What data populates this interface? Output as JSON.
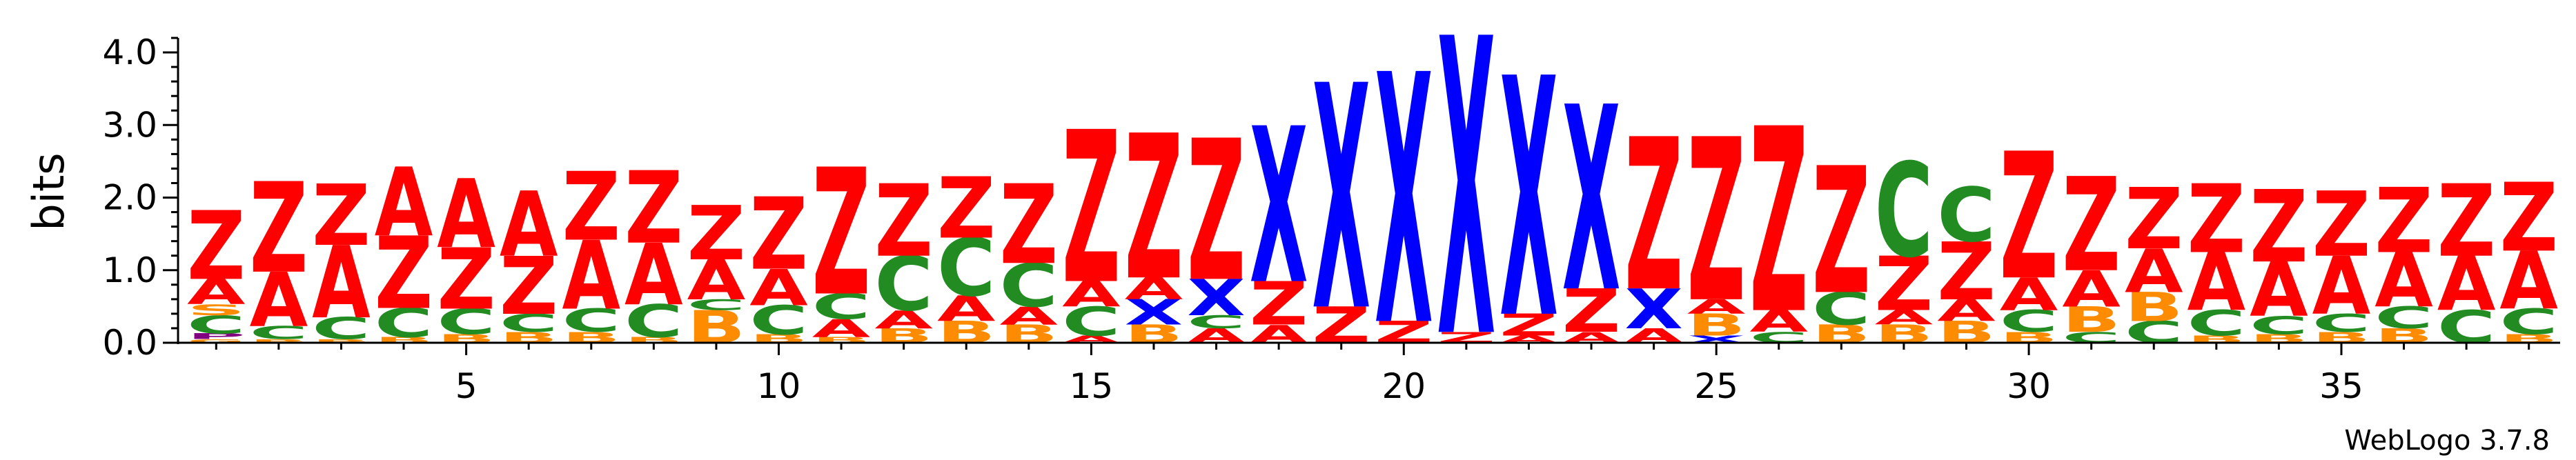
{
  "chart_data": {
    "type": "sequence-logo",
    "ylabel": "bits",
    "ylim": [
      0,
      4.2
    ],
    "y_ticks": [
      "0.0",
      "1.0",
      "2.0",
      "3.0",
      "4.0"
    ],
    "x_ticks": [
      5,
      10,
      15,
      20,
      25,
      30,
      35
    ],
    "footer": "WebLogo 3.7.8",
    "colors": {
      "Z": "#ff0000",
      "A": "#ff0000",
      "C": "#228b22",
      "B": "#ff8c00",
      "X": "#0000ff",
      "S": "#ff8c00",
      "P": "#800080",
      "G": "#ff8c00"
    },
    "positions": [
      {
        "pos": 1,
        "stack": [
          [
            "G",
            0.05
          ],
          [
            "P",
            0.08
          ],
          [
            "C",
            0.25
          ],
          [
            "S",
            0.15
          ],
          [
            "A",
            0.35
          ],
          [
            "Z",
            0.95
          ]
        ]
      },
      {
        "pos": 2,
        "stack": [
          [
            "B",
            0.05
          ],
          [
            "C",
            0.18
          ],
          [
            "A",
            0.75
          ],
          [
            "Z",
            1.25
          ]
        ]
      },
      {
        "pos": 3,
        "stack": [
          [
            "B",
            0.05
          ],
          [
            "C",
            0.3
          ],
          [
            "A",
            1.0
          ],
          [
            "Z",
            0.85
          ]
        ]
      },
      {
        "pos": 4,
        "stack": [
          [
            "B",
            0.08
          ],
          [
            "C",
            0.4
          ],
          [
            "Z",
            1.0
          ],
          [
            "A",
            0.95
          ]
        ]
      },
      {
        "pos": 5,
        "stack": [
          [
            "B",
            0.12
          ],
          [
            "C",
            0.35
          ],
          [
            "Z",
            0.85
          ],
          [
            "A",
            0.95
          ]
        ]
      },
      {
        "pos": 6,
        "stack": [
          [
            "B",
            0.15
          ],
          [
            "C",
            0.25
          ],
          [
            "Z",
            0.8
          ],
          [
            "A",
            0.9
          ]
        ]
      },
      {
        "pos": 7,
        "stack": [
          [
            "B",
            0.15
          ],
          [
            "C",
            0.32
          ],
          [
            "A",
            0.95
          ],
          [
            "Z",
            0.95
          ]
        ]
      },
      {
        "pos": 8,
        "stack": [
          [
            "B",
            0.08
          ],
          [
            "C",
            0.45
          ],
          [
            "A",
            0.85
          ],
          [
            "Z",
            1.0
          ]
        ]
      },
      {
        "pos": 9,
        "stack": [
          [
            "B",
            0.45
          ],
          [
            "C",
            0.15
          ],
          [
            "A",
            0.55
          ],
          [
            "Z",
            0.75
          ]
        ]
      },
      {
        "pos": 10,
        "stack": [
          [
            "B",
            0.12
          ],
          [
            "C",
            0.4
          ],
          [
            "A",
            0.5
          ],
          [
            "Z",
            1.0
          ]
        ]
      },
      {
        "pos": 11,
        "stack": [
          [
            "B",
            0.08
          ],
          [
            "A",
            0.25
          ],
          [
            "C",
            0.35
          ],
          [
            "Z",
            1.75
          ]
        ]
      },
      {
        "pos": 12,
        "stack": [
          [
            "B",
            0.2
          ],
          [
            "A",
            0.25
          ],
          [
            "C",
            0.75
          ],
          [
            "Z",
            1.0
          ]
        ]
      },
      {
        "pos": 13,
        "stack": [
          [
            "B",
            0.3
          ],
          [
            "A",
            0.35
          ],
          [
            "C",
            0.8
          ],
          [
            "Z",
            0.85
          ]
        ]
      },
      {
        "pos": 14,
        "stack": [
          [
            "B",
            0.25
          ],
          [
            "A",
            0.25
          ],
          [
            "C",
            0.6
          ],
          [
            "Z",
            1.1
          ]
        ]
      },
      {
        "pos": 15,
        "stack": [
          [
            "A",
            0.1
          ],
          [
            "C",
            0.4
          ],
          [
            "A",
            0.35
          ],
          [
            "Z",
            2.1
          ]
        ]
      },
      {
        "pos": 16,
        "stack": [
          [
            "B",
            0.25
          ],
          [
            "X",
            0.35
          ],
          [
            "A",
            0.3
          ],
          [
            "Z",
            2.0
          ]
        ]
      },
      {
        "pos": 17,
        "stack": [
          [
            "A",
            0.2
          ],
          [
            "C",
            0.18
          ],
          [
            "X",
            0.5
          ],
          [
            "Z",
            1.95
          ]
        ]
      },
      {
        "pos": 18,
        "stack": [
          [
            "A",
            0.25
          ],
          [
            "Z",
            0.6
          ],
          [
            "X",
            2.15
          ]
        ]
      },
      {
        "pos": 19,
        "stack": [
          [
            "Z",
            0.5
          ],
          [
            "X",
            3.1
          ]
        ]
      },
      {
        "pos": 20,
        "stack": [
          [
            "Z",
            0.3
          ],
          [
            "X",
            3.45
          ]
        ]
      },
      {
        "pos": 21,
        "stack": [
          [
            "Z",
            0.15
          ],
          [
            "X",
            4.1
          ]
        ]
      },
      {
        "pos": 22,
        "stack": [
          [
            "A",
            0.1
          ],
          [
            "Z",
            0.3
          ],
          [
            "X",
            3.3
          ]
        ]
      },
      {
        "pos": 23,
        "stack": [
          [
            "A",
            0.15
          ],
          [
            "Z",
            0.6
          ],
          [
            "X",
            2.55
          ]
        ]
      },
      {
        "pos": 24,
        "stack": [
          [
            "A",
            0.2
          ],
          [
            "X",
            0.55
          ],
          [
            "Z",
            2.1
          ]
        ]
      },
      {
        "pos": 25,
        "stack": [
          [
            "X",
            0.1
          ],
          [
            "B",
            0.3
          ],
          [
            "A",
            0.2
          ],
          [
            "Z",
            2.25
          ]
        ]
      },
      {
        "pos": 26,
        "stack": [
          [
            "C",
            0.15
          ],
          [
            "A",
            0.3
          ],
          [
            "Z",
            2.55
          ]
        ]
      },
      {
        "pos": 27,
        "stack": [
          [
            "B",
            0.25
          ],
          [
            "C",
            0.45
          ],
          [
            "Z",
            1.75
          ]
        ]
      },
      {
        "pos": 28,
        "stack": [
          [
            "B",
            0.25
          ],
          [
            "A",
            0.2
          ],
          [
            "Z",
            0.75
          ],
          [
            "C",
            1.3
          ]
        ]
      },
      {
        "pos": 29,
        "stack": [
          [
            "B",
            0.3
          ],
          [
            "A",
            0.3
          ],
          [
            "Z",
            0.8
          ],
          [
            "C",
            0.75
          ]
        ]
      },
      {
        "pos": 30,
        "stack": [
          [
            "B",
            0.15
          ],
          [
            "C",
            0.3
          ],
          [
            "A",
            0.45
          ],
          [
            "Z",
            1.75
          ]
        ]
      },
      {
        "pos": 31,
        "stack": [
          [
            "C",
            0.15
          ],
          [
            "B",
            0.35
          ],
          [
            "A",
            0.5
          ],
          [
            "Z",
            1.3
          ]
        ]
      },
      {
        "pos": 32,
        "stack": [
          [
            "C",
            0.3
          ],
          [
            "B",
            0.4
          ],
          [
            "A",
            0.6
          ],
          [
            "Z",
            0.85
          ]
        ]
      },
      {
        "pos": 33,
        "stack": [
          [
            "B",
            0.1
          ],
          [
            "C",
            0.35
          ],
          [
            "A",
            0.8
          ],
          [
            "Z",
            0.95
          ]
        ]
      },
      {
        "pos": 34,
        "stack": [
          [
            "B",
            0.12
          ],
          [
            "C",
            0.25
          ],
          [
            "A",
            0.75
          ],
          [
            "Z",
            1.0
          ]
        ]
      },
      {
        "pos": 35,
        "stack": [
          [
            "B",
            0.15
          ],
          [
            "C",
            0.25
          ],
          [
            "A",
            0.8
          ],
          [
            "Z",
            0.9
          ]
        ]
      },
      {
        "pos": 36,
        "stack": [
          [
            "B",
            0.2
          ],
          [
            "C",
            0.3
          ],
          [
            "A",
            0.75
          ],
          [
            "Z",
            0.9
          ]
        ]
      },
      {
        "pos": 37,
        "stack": [
          [
            "C",
            0.45
          ],
          [
            "A",
            0.75
          ],
          [
            "Z",
            1.0
          ]
        ]
      },
      {
        "pos": 38,
        "stack": [
          [
            "B",
            0.12
          ],
          [
            "C",
            0.35
          ],
          [
            "A",
            0.8
          ],
          [
            "Z",
            0.95
          ]
        ]
      }
    ]
  }
}
